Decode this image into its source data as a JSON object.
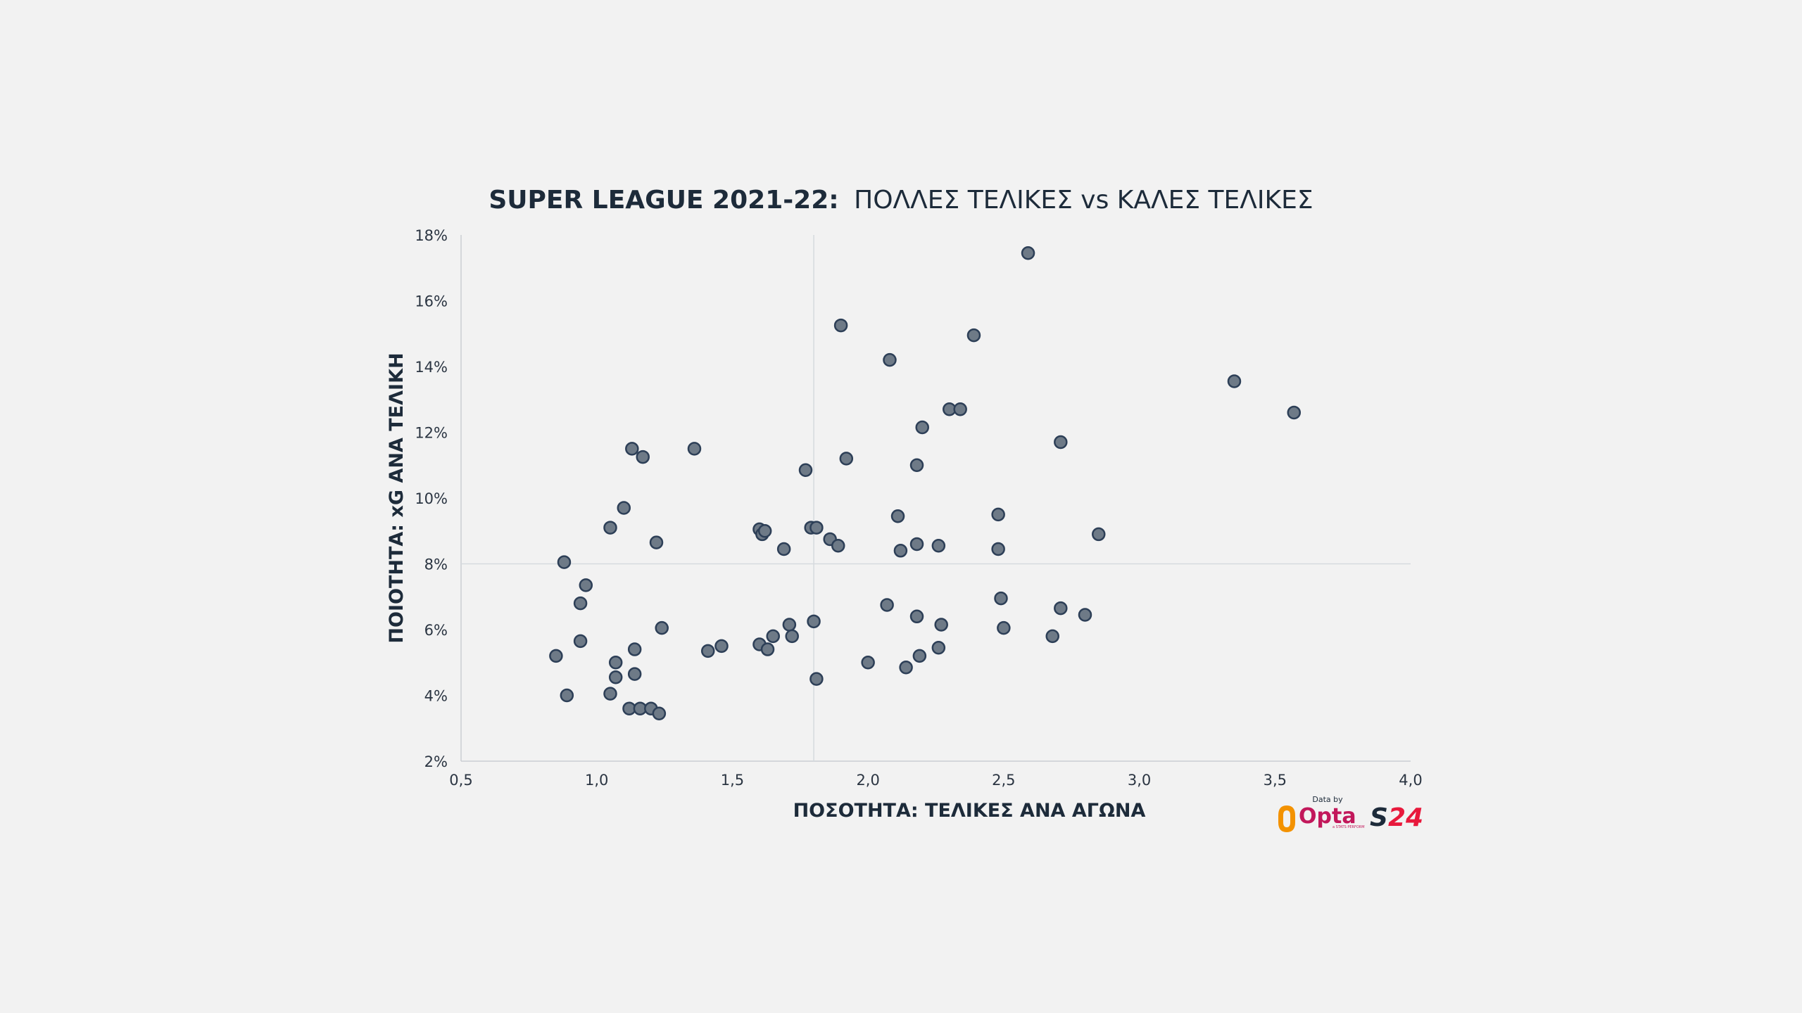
{
  "chart_data": {
    "type": "scatter",
    "title_bold": "SUPER LEAGUE 2021-22:",
    "title_rest": "ΠΟΛΛΕΣ ΤΕΛΙΚΕΣ vs ΚΑΛΕΣ ΤΕΛΙΚΕΣ",
    "xlabel": "ΠΟΣΟΤΗΤΑ: ΤΕΛΙΚΕΣ ΑΝΑ ΑΓΩΝΑ",
    "ylabel": "ΠΟΙΟΤΗΤΑ: xG ΑΝΑ ΤΕΛΙΚΗ",
    "xlim": [
      0.5,
      4.0
    ],
    "ylim": [
      2,
      18
    ],
    "x_ticks": [
      0.5,
      1.0,
      1.5,
      2.0,
      2.5,
      3.0,
      3.5,
      4.0
    ],
    "x_tick_labels": [
      "0,5",
      "1,0",
      "1,5",
      "2,0",
      "2,5",
      "3,0",
      "3,5",
      "4,0"
    ],
    "y_ticks": [
      2,
      4,
      6,
      8,
      10,
      12,
      14,
      16,
      18
    ],
    "y_tick_labels": [
      "2%",
      "4%",
      "6%",
      "8%",
      "10%",
      "12%",
      "14%",
      "16%",
      "18%"
    ],
    "reference_lines": {
      "x": 1.8,
      "y": 8
    },
    "grid": false,
    "marker_fill": "#6e7a87",
    "marker_edge": "#2d3f57",
    "points": [
      [
        0.85,
        5.2
      ],
      [
        0.88,
        8.05
      ],
      [
        0.89,
        4.0
      ],
      [
        0.94,
        6.8
      ],
      [
        0.94,
        5.65
      ],
      [
        0.96,
        7.35
      ],
      [
        1.05,
        9.1
      ],
      [
        1.05,
        4.05
      ],
      [
        1.07,
        5.0
      ],
      [
        1.07,
        4.55
      ],
      [
        1.1,
        9.7
      ],
      [
        1.12,
        3.6
      ],
      [
        1.13,
        11.5
      ],
      [
        1.14,
        4.65
      ],
      [
        1.14,
        5.4
      ],
      [
        1.16,
        3.6
      ],
      [
        1.17,
        11.25
      ],
      [
        1.2,
        3.6
      ],
      [
        1.22,
        8.65
      ],
      [
        1.23,
        3.45
      ],
      [
        1.24,
        6.05
      ],
      [
        1.36,
        11.5
      ],
      [
        1.41,
        5.35
      ],
      [
        1.46,
        5.5
      ],
      [
        1.6,
        9.05
      ],
      [
        1.6,
        5.55
      ],
      [
        1.61,
        8.9
      ],
      [
        1.62,
        9.0
      ],
      [
        1.63,
        5.4
      ],
      [
        1.65,
        5.8
      ],
      [
        1.69,
        8.45
      ],
      [
        1.71,
        6.15
      ],
      [
        1.72,
        5.8
      ],
      [
        1.77,
        10.85
      ],
      [
        1.79,
        9.1
      ],
      [
        1.8,
        6.25
      ],
      [
        1.81,
        9.1
      ],
      [
        1.81,
        4.5
      ],
      [
        1.86,
        8.75
      ],
      [
        1.89,
        8.55
      ],
      [
        1.9,
        15.25
      ],
      [
        1.92,
        11.2
      ],
      [
        2.0,
        5.0
      ],
      [
        2.07,
        6.75
      ],
      [
        2.08,
        14.2
      ],
      [
        2.11,
        9.45
      ],
      [
        2.12,
        8.4
      ],
      [
        2.14,
        4.85
      ],
      [
        2.18,
        8.6
      ],
      [
        2.18,
        11.0
      ],
      [
        2.18,
        6.4
      ],
      [
        2.19,
        5.2
      ],
      [
        2.2,
        12.15
      ],
      [
        2.26,
        8.55
      ],
      [
        2.26,
        5.45
      ],
      [
        2.27,
        6.15
      ],
      [
        2.3,
        12.7
      ],
      [
        2.34,
        12.7
      ],
      [
        2.39,
        14.95
      ],
      [
        2.48,
        9.5
      ],
      [
        2.48,
        8.45
      ],
      [
        2.49,
        6.95
      ],
      [
        2.5,
        6.05
      ],
      [
        2.59,
        17.45
      ],
      [
        2.68,
        5.8
      ],
      [
        2.71,
        11.7
      ],
      [
        2.71,
        6.65
      ],
      [
        2.8,
        6.45
      ],
      [
        2.85,
        8.9
      ],
      [
        3.35,
        13.55
      ],
      [
        3.57,
        12.6
      ]
    ]
  },
  "logos": {
    "data_by": "Data by",
    "opta": "Opta",
    "opta_sub": "a STATS PERFORM",
    "s24": "S24",
    "colors": {
      "opta_orange": "#f39200",
      "opta_magenta": "#c2185b",
      "s24_navy": "#1d2b3a",
      "s24_red": "#e8193c"
    }
  }
}
